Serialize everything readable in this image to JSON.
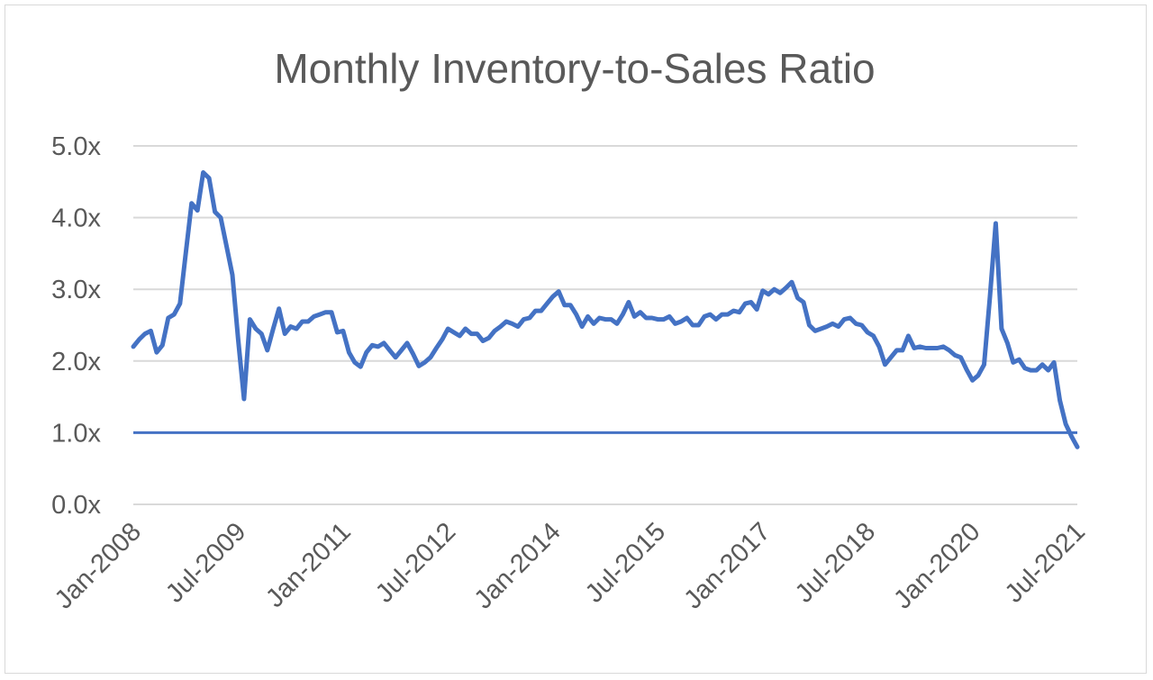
{
  "chart_data": {
    "type": "line",
    "title": "Monthly Inventory-to-Sales Ratio",
    "xlabel": "",
    "ylabel": "",
    "ylim": [
      0,
      5
    ],
    "yticks": [
      "0.0x",
      "1.0x",
      "2.0x",
      "3.0x",
      "4.0x",
      "5.0x"
    ],
    "ytick_values": [
      0,
      1,
      2,
      3,
      4,
      5
    ],
    "xticks": [
      "Jan-2008",
      "Jul-2009",
      "Jan-2011",
      "Jul-2012",
      "Jan-2014",
      "Jul-2015",
      "Jan-2017",
      "Jul-2018",
      "Jan-2020",
      "Jul-2021"
    ],
    "x_start": "Jan-2008",
    "x_end": "Jul-2021",
    "grid": true,
    "reference_line": {
      "y": 1.0,
      "color": "#4472c4"
    },
    "series_color": "#4472c4",
    "series": [
      {
        "points": [
          [
            "Jan-2008",
            2.2
          ],
          [
            "Feb-2008",
            2.3
          ],
          [
            "Mar-2008",
            2.38
          ],
          [
            "Apr-2008",
            2.42
          ],
          [
            "May-2008",
            2.12
          ],
          [
            "Jun-2008",
            2.22
          ],
          [
            "Jul-2008",
            2.6
          ],
          [
            "Aug-2008",
            2.65
          ],
          [
            "Sep-2008",
            2.8
          ],
          [
            "Oct-2008",
            3.5
          ],
          [
            "Nov-2008",
            4.2
          ],
          [
            "Dec-2008",
            4.1
          ],
          [
            "Jan-2009",
            4.63
          ],
          [
            "Feb-2009",
            4.55
          ],
          [
            "Mar-2009",
            4.08
          ],
          [
            "Apr-2009",
            4.0
          ],
          [
            "May-2009",
            3.6
          ],
          [
            "Jun-2009",
            3.2
          ],
          [
            "Jul-2009",
            2.3
          ],
          [
            "Aug-2009",
            1.47
          ],
          [
            "Sep-2009",
            2.58
          ],
          [
            "Oct-2009",
            2.45
          ],
          [
            "Nov-2009",
            2.38
          ],
          [
            "Dec-2009",
            2.15
          ],
          [
            "Jan-2010",
            2.45
          ],
          [
            "Feb-2010",
            2.73
          ],
          [
            "Mar-2010",
            2.38
          ],
          [
            "Apr-2010",
            2.48
          ],
          [
            "May-2010",
            2.45
          ],
          [
            "Jun-2010",
            2.55
          ],
          [
            "Jul-2010",
            2.55
          ],
          [
            "Aug-2010",
            2.62
          ],
          [
            "Sep-2010",
            2.65
          ],
          [
            "Oct-2010",
            2.68
          ],
          [
            "Nov-2010",
            2.68
          ],
          [
            "Dec-2010",
            2.4
          ],
          [
            "Jan-2011",
            2.42
          ],
          [
            "Feb-2011",
            2.12
          ],
          [
            "Mar-2011",
            1.98
          ],
          [
            "Apr-2011",
            1.92
          ],
          [
            "May-2011",
            2.12
          ],
          [
            "Jun-2011",
            2.22
          ],
          [
            "Jul-2011",
            2.2
          ],
          [
            "Aug-2011",
            2.25
          ],
          [
            "Sep-2011",
            2.15
          ],
          [
            "Oct-2011",
            2.05
          ],
          [
            "Nov-2011",
            2.15
          ],
          [
            "Dec-2011",
            2.25
          ],
          [
            "Jan-2012",
            2.1
          ],
          [
            "Feb-2012",
            1.93
          ],
          [
            "Mar-2012",
            1.98
          ],
          [
            "Apr-2012",
            2.05
          ],
          [
            "May-2012",
            2.18
          ],
          [
            "Jun-2012",
            2.3
          ],
          [
            "Jul-2012",
            2.45
          ],
          [
            "Aug-2012",
            2.4
          ],
          [
            "Sep-2012",
            2.35
          ],
          [
            "Oct-2012",
            2.45
          ],
          [
            "Nov-2012",
            2.38
          ],
          [
            "Dec-2012",
            2.38
          ],
          [
            "Jan-2013",
            2.28
          ],
          [
            "Feb-2013",
            2.32
          ],
          [
            "Mar-2013",
            2.42
          ],
          [
            "Apr-2013",
            2.48
          ],
          [
            "May-2013",
            2.55
          ],
          [
            "Jun-2013",
            2.52
          ],
          [
            "Jul-2013",
            2.48
          ],
          [
            "Aug-2013",
            2.58
          ],
          [
            "Sep-2013",
            2.6
          ],
          [
            "Oct-2013",
            2.7
          ],
          [
            "Nov-2013",
            2.7
          ],
          [
            "Dec-2013",
            2.8
          ],
          [
            "Jan-2014",
            2.9
          ],
          [
            "Feb-2014",
            2.97
          ],
          [
            "Mar-2014",
            2.78
          ],
          [
            "Apr-2014",
            2.78
          ],
          [
            "May-2014",
            2.65
          ],
          [
            "Jun-2014",
            2.48
          ],
          [
            "Jul-2014",
            2.62
          ],
          [
            "Aug-2014",
            2.52
          ],
          [
            "Sep-2014",
            2.6
          ],
          [
            "Oct-2014",
            2.58
          ],
          [
            "Nov-2014",
            2.58
          ],
          [
            "Dec-2014",
            2.52
          ],
          [
            "Jan-2015",
            2.65
          ],
          [
            "Feb-2015",
            2.82
          ],
          [
            "Mar-2015",
            2.62
          ],
          [
            "Apr-2015",
            2.68
          ],
          [
            "May-2015",
            2.6
          ],
          [
            "Jun-2015",
            2.6
          ],
          [
            "Jul-2015",
            2.58
          ],
          [
            "Aug-2015",
            2.58
          ],
          [
            "Sep-2015",
            2.62
          ],
          [
            "Oct-2015",
            2.52
          ],
          [
            "Nov-2015",
            2.55
          ],
          [
            "Dec-2015",
            2.6
          ],
          [
            "Jan-2016",
            2.5
          ],
          [
            "Feb-2016",
            2.5
          ],
          [
            "Mar-2016",
            2.62
          ],
          [
            "Apr-2016",
            2.65
          ],
          [
            "May-2016",
            2.58
          ],
          [
            "Jun-2016",
            2.65
          ],
          [
            "Jul-2016",
            2.65
          ],
          [
            "Aug-2016",
            2.7
          ],
          [
            "Sep-2016",
            2.68
          ],
          [
            "Oct-2016",
            2.8
          ],
          [
            "Nov-2016",
            2.82
          ],
          [
            "Dec-2016",
            2.72
          ],
          [
            "Jan-2017",
            2.98
          ],
          [
            "Feb-2017",
            2.93
          ],
          [
            "Mar-2017",
            3.0
          ],
          [
            "Apr-2017",
            2.95
          ],
          [
            "May-2017",
            3.02
          ],
          [
            "Jun-2017",
            3.1
          ],
          [
            "Jul-2017",
            2.88
          ],
          [
            "Aug-2017",
            2.82
          ],
          [
            "Sep-2017",
            2.5
          ],
          [
            "Oct-2017",
            2.42
          ],
          [
            "Nov-2017",
            2.45
          ],
          [
            "Dec-2017",
            2.48
          ],
          [
            "Jan-2018",
            2.52
          ],
          [
            "Feb-2018",
            2.48
          ],
          [
            "Mar-2018",
            2.58
          ],
          [
            "Apr-2018",
            2.6
          ],
          [
            "May-2018",
            2.52
          ],
          [
            "Jun-2018",
            2.5
          ],
          [
            "Jul-2018",
            2.4
          ],
          [
            "Aug-2018",
            2.35
          ],
          [
            "Sep-2018",
            2.2
          ],
          [
            "Oct-2018",
            1.95
          ],
          [
            "Nov-2018",
            2.05
          ],
          [
            "Dec-2018",
            2.15
          ],
          [
            "Jan-2019",
            2.15
          ],
          [
            "Feb-2019",
            2.35
          ],
          [
            "Mar-2019",
            2.18
          ],
          [
            "Apr-2019",
            2.2
          ],
          [
            "May-2019",
            2.18
          ],
          [
            "Jun-2019",
            2.18
          ],
          [
            "Jul-2019",
            2.18
          ],
          [
            "Aug-2019",
            2.2
          ],
          [
            "Sep-2019",
            2.15
          ],
          [
            "Oct-2019",
            2.08
          ],
          [
            "Nov-2019",
            2.05
          ],
          [
            "Dec-2019",
            1.88
          ],
          [
            "Jan-2020",
            1.73
          ],
          [
            "Feb-2020",
            1.8
          ],
          [
            "Mar-2020",
            1.95
          ],
          [
            "Apr-2020",
            2.9
          ],
          [
            "May-2020",
            3.92
          ],
          [
            "Jun-2020",
            2.45
          ],
          [
            "Jul-2020",
            2.25
          ],
          [
            "Aug-2020",
            1.98
          ],
          [
            "Sep-2020",
            2.02
          ],
          [
            "Oct-2020",
            1.9
          ],
          [
            "Nov-2020",
            1.87
          ],
          [
            "Dec-2020",
            1.87
          ],
          [
            "Jan-2021",
            1.95
          ],
          [
            "Feb-2021",
            1.87
          ],
          [
            "Mar-2021",
            1.98
          ],
          [
            "Apr-2021",
            1.45
          ],
          [
            "May-2021",
            1.12
          ],
          [
            "Jun-2021",
            0.95
          ],
          [
            "Jul-2021",
            0.8
          ]
        ]
      }
    ]
  }
}
